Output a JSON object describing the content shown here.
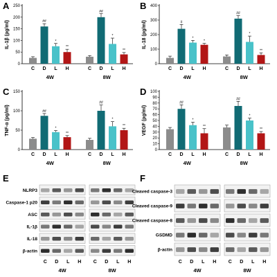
{
  "panels": {
    "A": "A",
    "B": "B",
    "C": "C",
    "D": "D",
    "E": "E",
    "F": "F"
  },
  "chart_data": [
    {
      "type": "bar",
      "panel": "A",
      "ylabel": "IL-1β (pg/ml)",
      "ylim": [
        0,
        250
      ],
      "yticks": [
        0,
        50,
        100,
        150,
        200,
        250
      ],
      "groups": [
        "4W",
        "8W"
      ],
      "categories": [
        "C",
        "D",
        "L",
        "H"
      ],
      "colors": [
        "#8c8c8c",
        "#116b74",
        "#49c2c9",
        "#b21616"
      ],
      "values": [
        [
          25,
          160,
          75,
          50
        ],
        [
          30,
          200,
          85,
          40
        ]
      ],
      "errors": [
        [
          5,
          12,
          12,
          12
        ],
        [
          5,
          15,
          25,
          8
        ]
      ],
      "significance": [
        [
          "",
          "##",
          "*",
          "**"
        ],
        [
          "",
          "##",
          "*",
          "**"
        ]
      ]
    },
    {
      "type": "bar",
      "panel": "B",
      "ylabel": "IL-18 (pg/ml)",
      "ylim": [
        0,
        400
      ],
      "yticks": [
        0,
        100,
        200,
        300,
        400
      ],
      "groups": [
        "4W",
        "8W"
      ],
      "categories": [
        "C",
        "D",
        "L",
        "H"
      ],
      "colors": [
        "#8c8c8c",
        "#116b74",
        "#49c2c9",
        "#b21616"
      ],
      "values": [
        [
          40,
          240,
          145,
          130
        ],
        [
          50,
          310,
          150,
          60
        ]
      ],
      "errors": [
        [
          12,
          30,
          15,
          10
        ],
        [
          10,
          20,
          40,
          15
        ]
      ],
      "significance": [
        [
          "",
          "#",
          "*",
          "*"
        ],
        [
          "",
          "##",
          "*",
          "**"
        ]
      ]
    },
    {
      "type": "bar",
      "panel": "C",
      "ylabel": "TNF-α (pg/ml)",
      "ylim": [
        0,
        150
      ],
      "yticks": [
        0,
        50,
        100,
        150
      ],
      "groups": [
        "4W",
        "8W"
      ],
      "categories": [
        "C",
        "D",
        "L",
        "H"
      ],
      "colors": [
        "#8c8c8c",
        "#116b74",
        "#49c2c9",
        "#b21616"
      ],
      "values": [
        [
          28,
          87,
          45,
          32
        ],
        [
          25,
          100,
          60,
          50
        ]
      ],
      "errors": [
        [
          3,
          6,
          4,
          4
        ],
        [
          4,
          15,
          12,
          5
        ]
      ],
      "significance": [
        [
          "",
          "##",
          "*",
          "**"
        ],
        [
          "",
          "##",
          "*",
          "**"
        ]
      ]
    },
    {
      "type": "bar",
      "panel": "D",
      "ylabel": "VEGF (pg/ml)",
      "ylim": [
        0,
        100
      ],
      "yticks": [
        0,
        10,
        20,
        30,
        40,
        50,
        60,
        70,
        80,
        90,
        100
      ],
      "groups": [
        "4W",
        "8W"
      ],
      "categories": [
        "C",
        "D",
        "L",
        "H"
      ],
      "colors": [
        "#8c8c8c",
        "#116b74",
        "#49c2c9",
        "#b21616"
      ],
      "values": [
        [
          35,
          70,
          42,
          28
        ],
        [
          38,
          75,
          50,
          28
        ]
      ],
      "errors": [
        [
          3,
          7,
          5,
          8
        ],
        [
          4,
          8,
          4,
          3
        ]
      ],
      "significance": [
        [
          "",
          "##",
          "*",
          "**"
        ],
        [
          "",
          "##",
          "*",
          "**"
        ]
      ]
    }
  ],
  "blots": {
    "E": {
      "rows": [
        "NLRP3",
        "Caspase-1 p20",
        "ASC",
        "IL-1β",
        "IL-18",
        "β-actin"
      ],
      "lanes": [
        "C",
        "D",
        "L",
        "H"
      ],
      "groups": [
        "4W",
        "8W"
      ]
    },
    "F": {
      "rows": [
        "Cleaved caspase-3",
        "Cleaved caspase-9",
        "Cleaved caspase-8",
        "GSDMD",
        "β-actin"
      ],
      "lanes": [
        "C",
        "D",
        "L",
        "H"
      ],
      "groups": [
        "4W",
        "8W"
      ]
    }
  }
}
